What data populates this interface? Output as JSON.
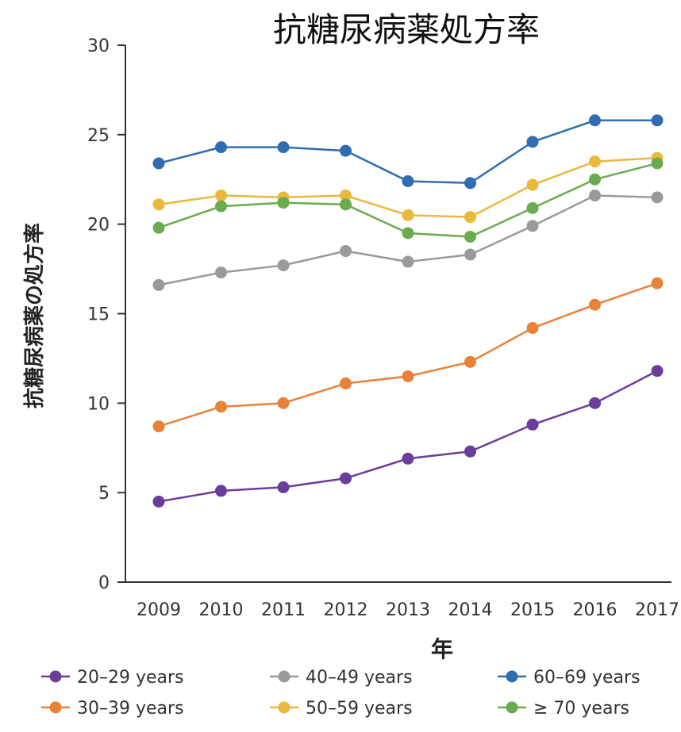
{
  "chart_data": {
    "type": "line",
    "title": "抗糖尿病薬処方率",
    "xlabel": "年",
    "ylabel": "抗糖尿病薬の処方率",
    "categories": [
      "2009",
      "2010",
      "2011",
      "2012",
      "2013",
      "2014",
      "2015",
      "2016",
      "2017"
    ],
    "ylim": [
      0,
      30
    ],
    "yticks": [
      0,
      5,
      10,
      15,
      20,
      25,
      30
    ],
    "grid": false,
    "legend_position": "bottom",
    "series": [
      {
        "name": "20–29 years",
        "color": "#6a3d9a",
        "values": [
          4.5,
          5.1,
          5.3,
          5.8,
          6.9,
          7.3,
          8.8,
          10.0,
          11.8
        ]
      },
      {
        "name": "30–39 years",
        "color": "#e8823a",
        "values": [
          8.7,
          9.8,
          10.0,
          11.1,
          11.5,
          12.3,
          14.2,
          15.5,
          16.7
        ]
      },
      {
        "name": "40–49 years",
        "color": "#9a9a9a",
        "values": [
          16.6,
          17.3,
          17.7,
          18.5,
          17.9,
          18.3,
          19.9,
          21.6,
          21.5
        ]
      },
      {
        "name": "50–59 years",
        "color": "#e8b93c",
        "values": [
          21.1,
          21.6,
          21.5,
          21.6,
          20.5,
          20.4,
          22.2,
          23.5,
          23.7
        ]
      },
      {
        "name": "60–69 years",
        "color": "#2f6db0",
        "values": [
          23.4,
          24.3,
          24.3,
          24.1,
          22.4,
          22.3,
          24.6,
          25.8,
          25.8
        ]
      },
      {
        "name": "≥ 70 years",
        "color": "#6aab4f",
        "values": [
          19.8,
          21.0,
          21.2,
          21.1,
          19.5,
          19.3,
          20.9,
          22.5,
          23.4
        ]
      }
    ]
  }
}
